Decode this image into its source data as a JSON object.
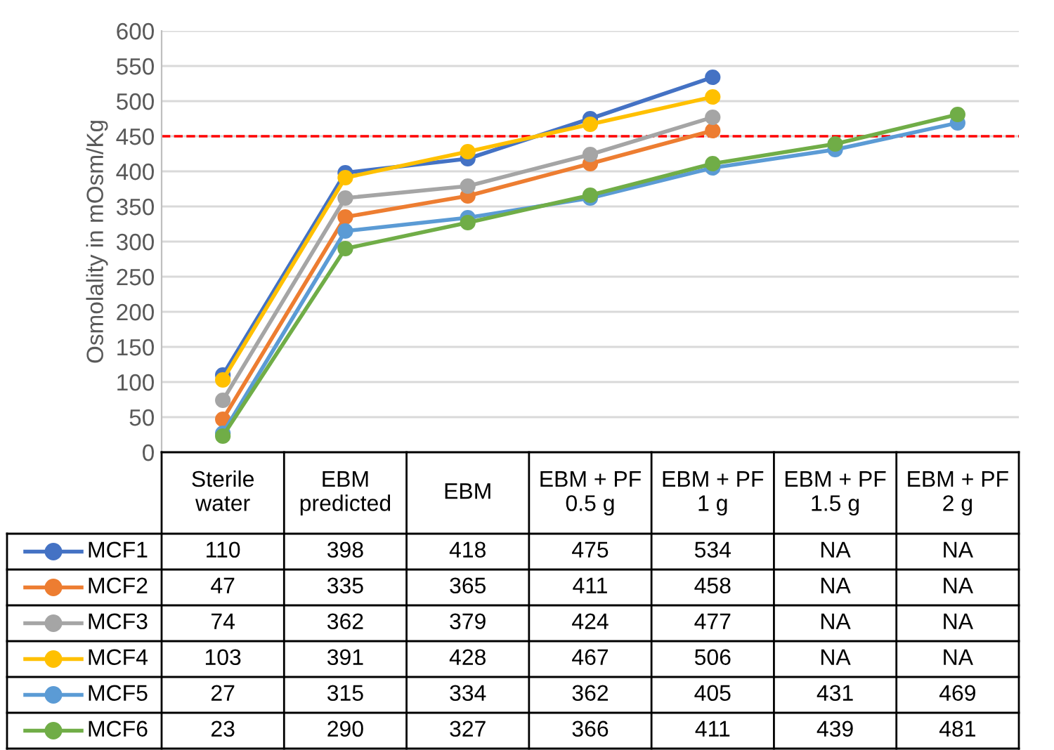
{
  "chart_data": {
    "type": "line",
    "ylabel": "Osmolality in mOsm/Kg",
    "categories": [
      "Sterile\nwater",
      "EBM\npredicted",
      "EBM",
      "EBM + PF\n0.5 g",
      "EBM + PF\n1 g",
      "EBM + PF\n1.5 g",
      "EBM + PF\n2 g"
    ],
    "series": [
      {
        "name": "MCF1",
        "color": "#4472c4",
        "values": [
          110,
          398,
          418,
          475,
          534,
          null,
          null
        ],
        "value_labels": [
          "110",
          "398",
          "418",
          "475",
          "534",
          "NA",
          "NA"
        ]
      },
      {
        "name": "MCF2",
        "color": "#ed7d31",
        "values": [
          47,
          335,
          365,
          411,
          458,
          null,
          null
        ],
        "value_labels": [
          "47",
          "335",
          "365",
          "411",
          "458",
          "NA",
          "NA"
        ]
      },
      {
        "name": "MCF3",
        "color": "#a5a5a5",
        "values": [
          74,
          362,
          379,
          424,
          477,
          null,
          null
        ],
        "value_labels": [
          "74",
          "362",
          "379",
          "424",
          "477",
          "NA",
          "NA"
        ]
      },
      {
        "name": "MCF4",
        "color": "#ffc000",
        "values": [
          103,
          391,
          428,
          467,
          506,
          null,
          null
        ],
        "value_labels": [
          "103",
          "391",
          "428",
          "467",
          "506",
          "NA",
          "NA"
        ]
      },
      {
        "name": "MCF5",
        "color": "#5b9bd5",
        "values": [
          27,
          315,
          334,
          362,
          405,
          431,
          469
        ],
        "value_labels": [
          "27",
          "315",
          "334",
          "362",
          "405",
          "431",
          "469"
        ]
      },
      {
        "name": "MCF6",
        "color": "#70ad47",
        "values": [
          23,
          290,
          327,
          366,
          411,
          439,
          481
        ],
        "value_labels": [
          "23",
          "290",
          "327",
          "366",
          "411",
          "439",
          "481"
        ]
      }
    ],
    "ylim": [
      0,
      600
    ],
    "yticks": [
      0,
      50,
      100,
      150,
      200,
      250,
      300,
      350,
      400,
      450,
      500,
      550,
      600
    ],
    "ref_lines": [
      {
        "axis": "y",
        "value": 450,
        "color": "#ff0000",
        "line_style": "dashed"
      }
    ],
    "grid": "y",
    "legend": "bottom left",
    "marker": "circle",
    "line_style": "solid"
  }
}
